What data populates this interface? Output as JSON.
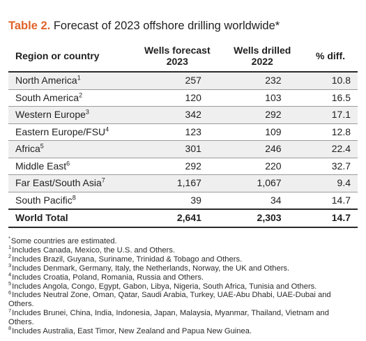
{
  "title": {
    "label": "Table 2.",
    "text": "Forecast of 2023 offshore drilling worldwide*"
  },
  "table": {
    "headers": [
      {
        "line1": "Region or country",
        "line2": ""
      },
      {
        "line1": "Wells forecast",
        "line2": "2023"
      },
      {
        "line1": "Wells drilled",
        "line2": "2022"
      },
      {
        "line1": "% diff.",
        "line2": ""
      }
    ],
    "rows": [
      {
        "region": "North America",
        "note": "1",
        "forecast": "257",
        "drilled": "232",
        "diff": "10.8"
      },
      {
        "region": "South America",
        "note": "2",
        "forecast": "120",
        "drilled": "103",
        "diff": "16.5"
      },
      {
        "region": "Western Europe",
        "note": "3",
        "forecast": "342",
        "drilled": "292",
        "diff": "17.1"
      },
      {
        "region": "Eastern Europe/FSU",
        "note": "4",
        "forecast": "123",
        "drilled": "109",
        "diff": "12.8"
      },
      {
        "region": "Africa",
        "note": "5",
        "forecast": "301",
        "drilled": "246",
        "diff": "22.4"
      },
      {
        "region": "Middle East",
        "note": "6",
        "forecast": "292",
        "drilled": "220",
        "diff": "32.7"
      },
      {
        "region": "Far East/South Asia",
        "note": "7",
        "forecast": "1,167",
        "drilled": "1,067",
        "diff": "9.4"
      },
      {
        "region": "South Pacific",
        "note": "8",
        "forecast": "39",
        "drilled": "34",
        "diff": "14.7"
      }
    ],
    "total": {
      "region": "World Total",
      "forecast": "2,641",
      "drilled": "2,303",
      "diff": "14.7"
    }
  },
  "footnotes": [
    {
      "mark": "*",
      "text": "Some countries are estimated."
    },
    {
      "mark": "1",
      "text": "Includes Canada, Mexico, the U.S. and Others."
    },
    {
      "mark": "2",
      "text": "Includes Brazil, Guyana, Suriname, Trinidad & Tobago and Others."
    },
    {
      "mark": "3",
      "text": "Includes Denmark, Germany, Italy, the Netherlands, Norway, the UK and Others."
    },
    {
      "mark": "4",
      "text": "Includes Croatia, Poland, Romania, Russia and Others."
    },
    {
      "mark": "5",
      "text": "Includes Angola, Congo, Egypt, Gabon, Libya, Nigeria, South Africa, Tunisia and Others."
    },
    {
      "mark": "6",
      "text": "Includes Neutral Zone, Oman, Qatar, Saudi Arabia, Turkey, UAE-Abu Dhabi, UAE-Dubai and Others."
    },
    {
      "mark": "7",
      "text": "Includes Brunei, China, India, Indonesia, Japan, Malaysia, Myanmar, Thailand, Vietnam and Others."
    },
    {
      "mark": "8",
      "text": "Includes Australia, East Timor, New Zealand and Papua New Guinea."
    }
  ],
  "colors": {
    "accent": "#e0632a",
    "row_shade": "#efefef",
    "rule": "#2a2a2a"
  }
}
